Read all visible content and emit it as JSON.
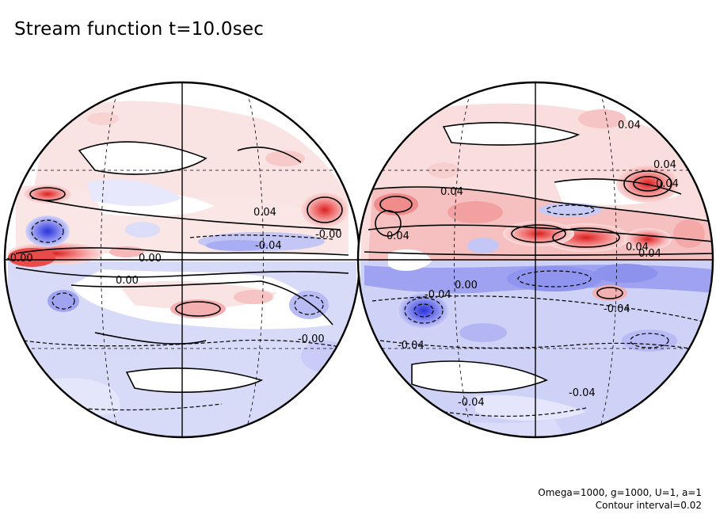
{
  "title": "Stream function t=10.0sec",
  "parameters": "Omega=1000, g=1000, U=1, a=1",
  "contour_interval": "Contour interval=0.02",
  "colors": {
    "positive": "#e85a5a",
    "positive_light": "#f8d4d4",
    "negative": "#4a4fe0",
    "negative_light": "#d3d5f7",
    "outline": "#000000"
  },
  "contour_labels": {
    "west": [
      "0.04",
      "-0.04",
      "-0.00",
      "0.00",
      "0.00",
      "-0.00",
      "-0.00"
    ],
    "east": [
      "0.04",
      "0.04",
      "0.04",
      "0.04",
      "0.04",
      "0.04",
      "0.00",
      "-0.04",
      "-0.04",
      "-0.04",
      "-0.04",
      "-0.04",
      "0.04"
    ]
  }
}
